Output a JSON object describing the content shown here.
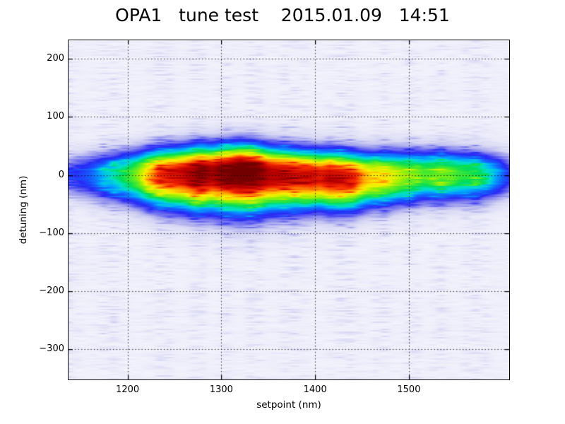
{
  "chart": {
    "title": "OPA1   tune test    2015.01.09   14:51",
    "xlabel": "setpoint (nm)",
    "ylabel": "detuning (nm)"
  },
  "chart_data": {
    "type": "heatmap",
    "title": "OPA1   tune test    2015.01.09   14:51",
    "xlabel": "setpoint (nm)",
    "ylabel": "detuning (nm)",
    "xlim": [
      1137,
      1607
    ],
    "ylim": [
      -352,
      232
    ],
    "xticks": {
      "values": [
        1200,
        1300,
        1400,
        1500
      ],
      "labels": [
        "1200",
        "1300",
        "1400",
        "1500"
      ]
    },
    "yticks": {
      "values": [
        200,
        100,
        0,
        -100,
        -200,
        -300
      ],
      "labels": [
        "200",
        "100",
        "0",
        "−100",
        "−200",
        "−300"
      ]
    },
    "grid": {
      "on": true,
      "style": "dotted",
      "color": "#000000",
      "dot": 1.4,
      "gap": 4.5
    },
    "frame_color": "#000000",
    "tick_direction": "in",
    "tick_length": 6,
    "colormap": [
      [
        0.0,
        "#f6f6fd"
      ],
      [
        0.06,
        "#e9e9f9"
      ],
      [
        0.13,
        "#d6d6f4"
      ],
      [
        0.2,
        "#a5a5ee"
      ],
      [
        0.27,
        "#6464f0"
      ],
      [
        0.33,
        "#2828f5"
      ],
      [
        0.4,
        "#1464ff"
      ],
      [
        0.46,
        "#00aaff"
      ],
      [
        0.52,
        "#00e1c8"
      ],
      [
        0.58,
        "#00dc5a"
      ],
      [
        0.64,
        "#50eb28"
      ],
      [
        0.7,
        "#b4f000"
      ],
      [
        0.75,
        "#faf000"
      ],
      [
        0.81,
        "#ffa000"
      ],
      [
        0.87,
        "#f52800"
      ],
      [
        0.93,
        "#be0000"
      ],
      [
        1.0,
        "#730000"
      ]
    ],
    "band": {
      "description": "horizontal OPA emission band centered near detuning 0 nm spanning the full setpoint range; hottest (max signal) near setpoint 1305-1335 nm, secondary red lobe near 1405-1445 nm, yellow 1450-1490 nm, green plateau 1495-1580 nm, fading to blue at both edges",
      "sharpness": 2.3,
      "sigma_up_nm": 50,
      "width_floor": 0.62,
      "center_nm": [
        [
          1137,
          0
        ],
        [
          1250,
          2
        ],
        [
          1320,
          7
        ],
        [
          1380,
          0
        ],
        [
          1440,
          -5
        ],
        [
          1470,
          -2
        ],
        [
          1520,
          2
        ],
        [
          1607,
          0
        ]
      ],
      "sigma_down_nm": [
        [
          1137,
          55
        ],
        [
          1250,
          66
        ],
        [
          1320,
          76
        ],
        [
          1400,
          62
        ],
        [
          1500,
          58
        ],
        [
          1607,
          54
        ]
      ],
      "intensity_profile": [
        [
          1137,
          0.26
        ],
        [
          1148,
          0.32
        ],
        [
          1160,
          0.37
        ],
        [
          1172,
          0.43
        ],
        [
          1185,
          0.5
        ],
        [
          1197,
          0.56
        ],
        [
          1210,
          0.65
        ],
        [
          1220,
          0.74
        ],
        [
          1232,
          0.82
        ],
        [
          1245,
          0.87
        ],
        [
          1260,
          0.9
        ],
        [
          1275,
          0.95
        ],
        [
          1290,
          0.93
        ],
        [
          1305,
          0.96
        ],
        [
          1320,
          1.0
        ],
        [
          1335,
          0.97
        ],
        [
          1350,
          0.92
        ],
        [
          1365,
          0.9
        ],
        [
          1380,
          0.88
        ],
        [
          1395,
          0.89
        ],
        [
          1405,
          0.87
        ],
        [
          1415,
          0.9
        ],
        [
          1430,
          0.88
        ],
        [
          1442,
          0.85
        ],
        [
          1452,
          0.78
        ],
        [
          1462,
          0.73
        ],
        [
          1475,
          0.72
        ],
        [
          1488,
          0.68
        ],
        [
          1500,
          0.64
        ],
        [
          1515,
          0.61
        ],
        [
          1530,
          0.62
        ],
        [
          1545,
          0.61
        ],
        [
          1560,
          0.58
        ],
        [
          1575,
          0.54
        ],
        [
          1588,
          0.47
        ],
        [
          1597,
          0.4
        ],
        [
          1603,
          0.34
        ],
        [
          1607,
          0.3
        ]
      ]
    },
    "background": {
      "base": 0.02,
      "noise_amp": 0.14,
      "tint": "#e9e9fb",
      "texture": "horizontal lavender streaks grouped in faint vertical columns"
    }
  }
}
